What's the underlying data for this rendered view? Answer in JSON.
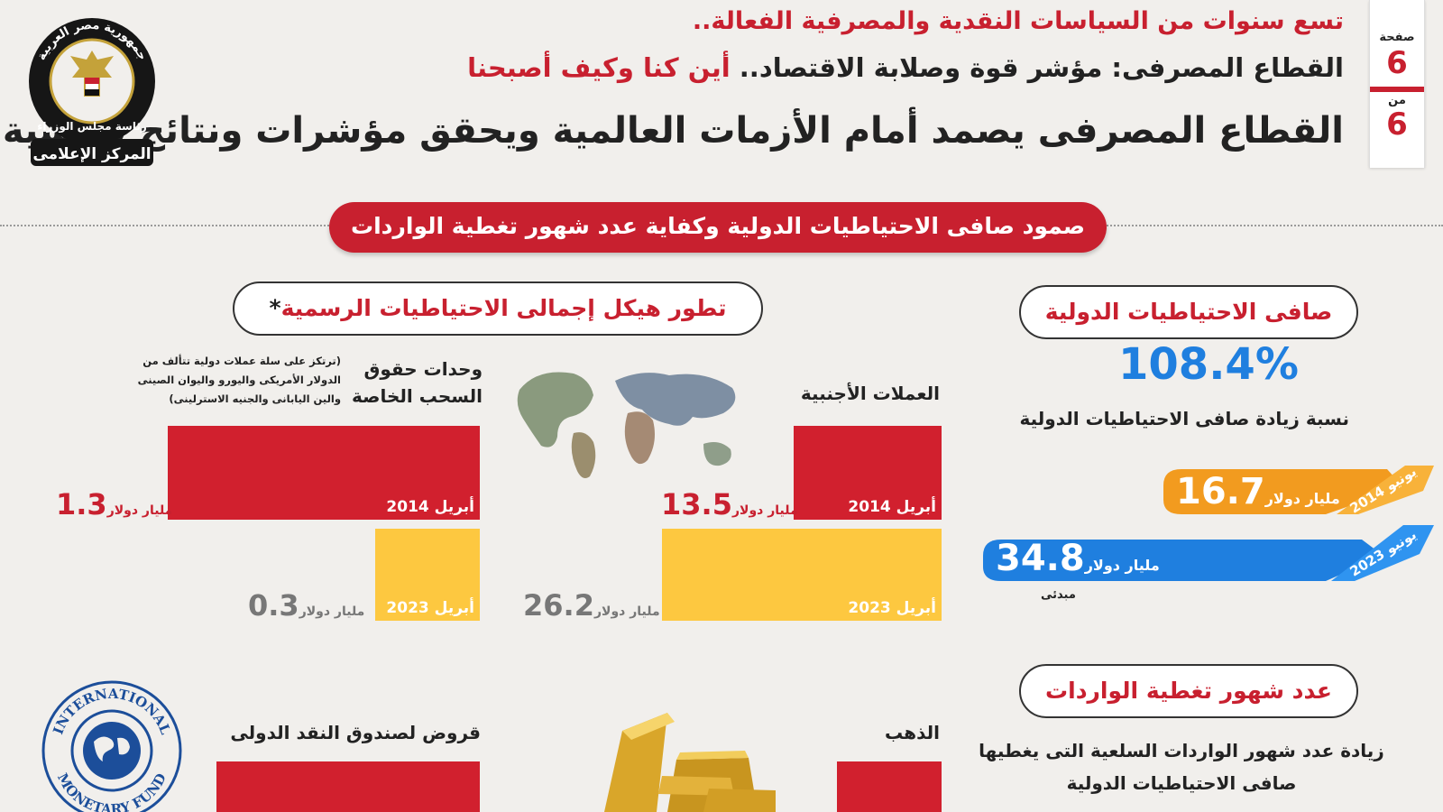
{
  "page": {
    "label_page": "صفحة",
    "page_number": "6",
    "label_of": "من",
    "total_pages": "6"
  },
  "header": {
    "line1": "تسع سنوات من السياسات النقدية والمصرفية الفعالة..",
    "line2_dark": "القطاع المصرفى: مؤشر قوة وصلابة الاقتصاد..",
    "line2_red": "أين كنا وكيف أصبحنا",
    "line3": "القطاع المصرفى يصمد أمام الأزمات العالمية ويحقق مؤشرات ونتائج قياسية"
  },
  "logo": {
    "text_top": "جمهورية مصر العربية",
    "text_mid": "رئاسة مجلس الوزراء",
    "text_bottom": "المركز الإعلامى"
  },
  "banner": {
    "text": "صمود صافى الاحتياطيات الدولية وكفاية عدد شهور تغطية الواردات"
  },
  "left_section": {
    "title": "تطور هيكل إجمالى الاحتياطيات الرسمية",
    "asterisk": "*",
    "sdr_title_line1": "وحدات حقوق",
    "sdr_title_line2": "السحب الخاصة",
    "sdr_note_line1": "(ترتكز على سلة عملات دولية تتألف من",
    "sdr_note_line2": "الدولار الأمريكى واليورو واليوان الصينى",
    "sdr_note_line3": "والين اليابانى والجنيه الاسترلينى)",
    "fx_title": "العملات الأجنبية",
    "gold_title": "الذهب",
    "imf_title": "قروض لصندوق النقد الدولى",
    "unit": "مليار دولار",
    "year_2014": "أبريل 2014",
    "year_2023": "أبريل 2023",
    "sdr_2014": "1.3",
    "sdr_2023": "0.3",
    "fx_2014": "13.5",
    "fx_2023": "26.2",
    "imf_logo_top": "INTERNATIONAL",
    "imf_logo_bottom": "MONETARY FUND"
  },
  "right_section": {
    "reserves_title": "صافى الاحتياطيات الدولية",
    "percent_value": "108.4%",
    "percent_caption": "نسبة زيادة صافى الاحتياطيات الدولية",
    "ribbon_2014_label": "يونيو 2014",
    "ribbon_2014_value": "16.7",
    "ribbon_2023_label": "يونيو 2023",
    "ribbon_2023_value": "34.8",
    "unit": "مليار دولار",
    "preliminary": "مبدئى",
    "imports_title": "عدد شهور تغطية الواردات",
    "imports_caption_line1": "زيادة عدد شهور الواردات السلعية التى يغطيها",
    "imports_caption_line2": "صافى الاحتياطيات الدولية"
  },
  "colors": {
    "red": "#c8202f",
    "yellow": "#fdc840",
    "orange": "#f29b1f",
    "blue": "#1f7fdf"
  }
}
